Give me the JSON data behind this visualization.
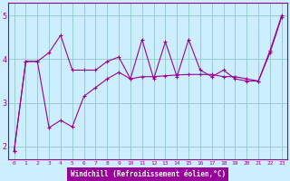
{
  "bg_color": "#cceeff",
  "line_color": "#990099",
  "grid_color": "#99cccc",
  "xlabel": "Windchill (Refroidissement éolien,°C)",
  "xlabel_color": "#ffffff",
  "xlabel_bg": "#990099",
  "xlim": [
    -0.5,
    23.5
  ],
  "ylim": [
    1.7,
    5.3
  ],
  "yticks": [
    2,
    3,
    4,
    5
  ],
  "xticks": [
    0,
    1,
    2,
    3,
    4,
    5,
    6,
    7,
    8,
    9,
    10,
    11,
    12,
    13,
    14,
    15,
    16,
    17,
    18,
    19,
    20,
    21,
    22,
    23
  ],
  "series1_x": [
    0,
    1,
    2,
    3,
    4,
    5,
    6,
    7,
    8,
    9,
    10,
    11,
    12,
    13,
    14,
    15,
    16,
    17,
    18,
    19,
    20,
    21,
    22,
    23
  ],
  "series1_y": [
    1.9,
    3.95,
    3.95,
    4.15,
    4.55,
    3.75,
    3.75,
    3.75,
    3.95,
    4.05,
    3.55,
    4.45,
    3.55,
    4.4,
    3.6,
    4.45,
    3.75,
    3.6,
    3.75,
    3.55,
    3.5,
    3.5,
    4.2,
    5.0
  ],
  "series2_x": [
    0,
    1,
    2,
    3,
    4,
    5,
    6,
    7,
    8,
    9,
    10,
    11,
    12,
    13,
    14,
    15,
    16,
    17,
    18,
    19,
    20,
    21,
    22,
    23
  ],
  "series2_y": [
    1.9,
    3.95,
    3.95,
    2.43,
    2.6,
    2.45,
    3.15,
    3.35,
    3.55,
    3.7,
    3.55,
    3.6,
    3.6,
    3.62,
    3.64,
    3.65,
    3.65,
    3.65,
    3.6,
    3.6,
    3.55,
    3.5,
    4.15,
    4.97
  ]
}
